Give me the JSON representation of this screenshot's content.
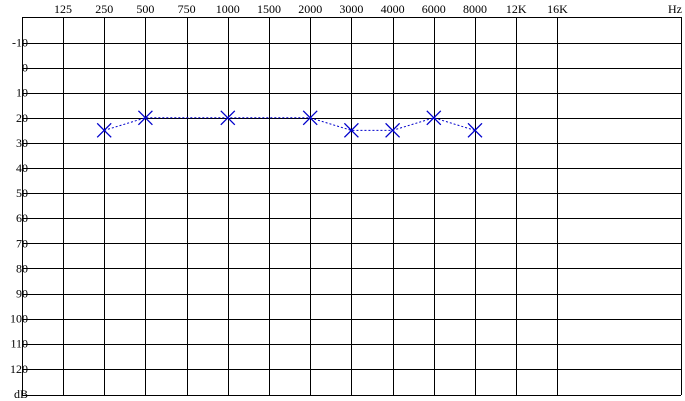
{
  "chart_data": {
    "type": "line",
    "title": "",
    "x_unit": "Hz",
    "y_unit": "dB",
    "x_ticks": [
      "125",
      "250",
      "500",
      "750",
      "1000",
      "1500",
      "2000",
      "3000",
      "4000",
      "6000",
      "8000",
      "12K",
      "16K"
    ],
    "y_ticks": [
      "-10",
      "0",
      "10",
      "20",
      "30",
      "40",
      "50",
      "60",
      "70",
      "80",
      "90",
      "100",
      "110",
      "120"
    ],
    "ylim": [
      -15,
      130
    ],
    "y_inverted": true,
    "grid": true,
    "series": [
      {
        "marker": "x",
        "color": "#0000cc",
        "line_style": "dashed",
        "x": [
          "250",
          "500",
          "1000",
          "2000",
          "3000",
          "4000",
          "6000",
          "8000"
        ],
        "y": [
          25,
          20,
          20,
          20,
          25,
          25,
          20,
          25
        ]
      }
    ]
  }
}
